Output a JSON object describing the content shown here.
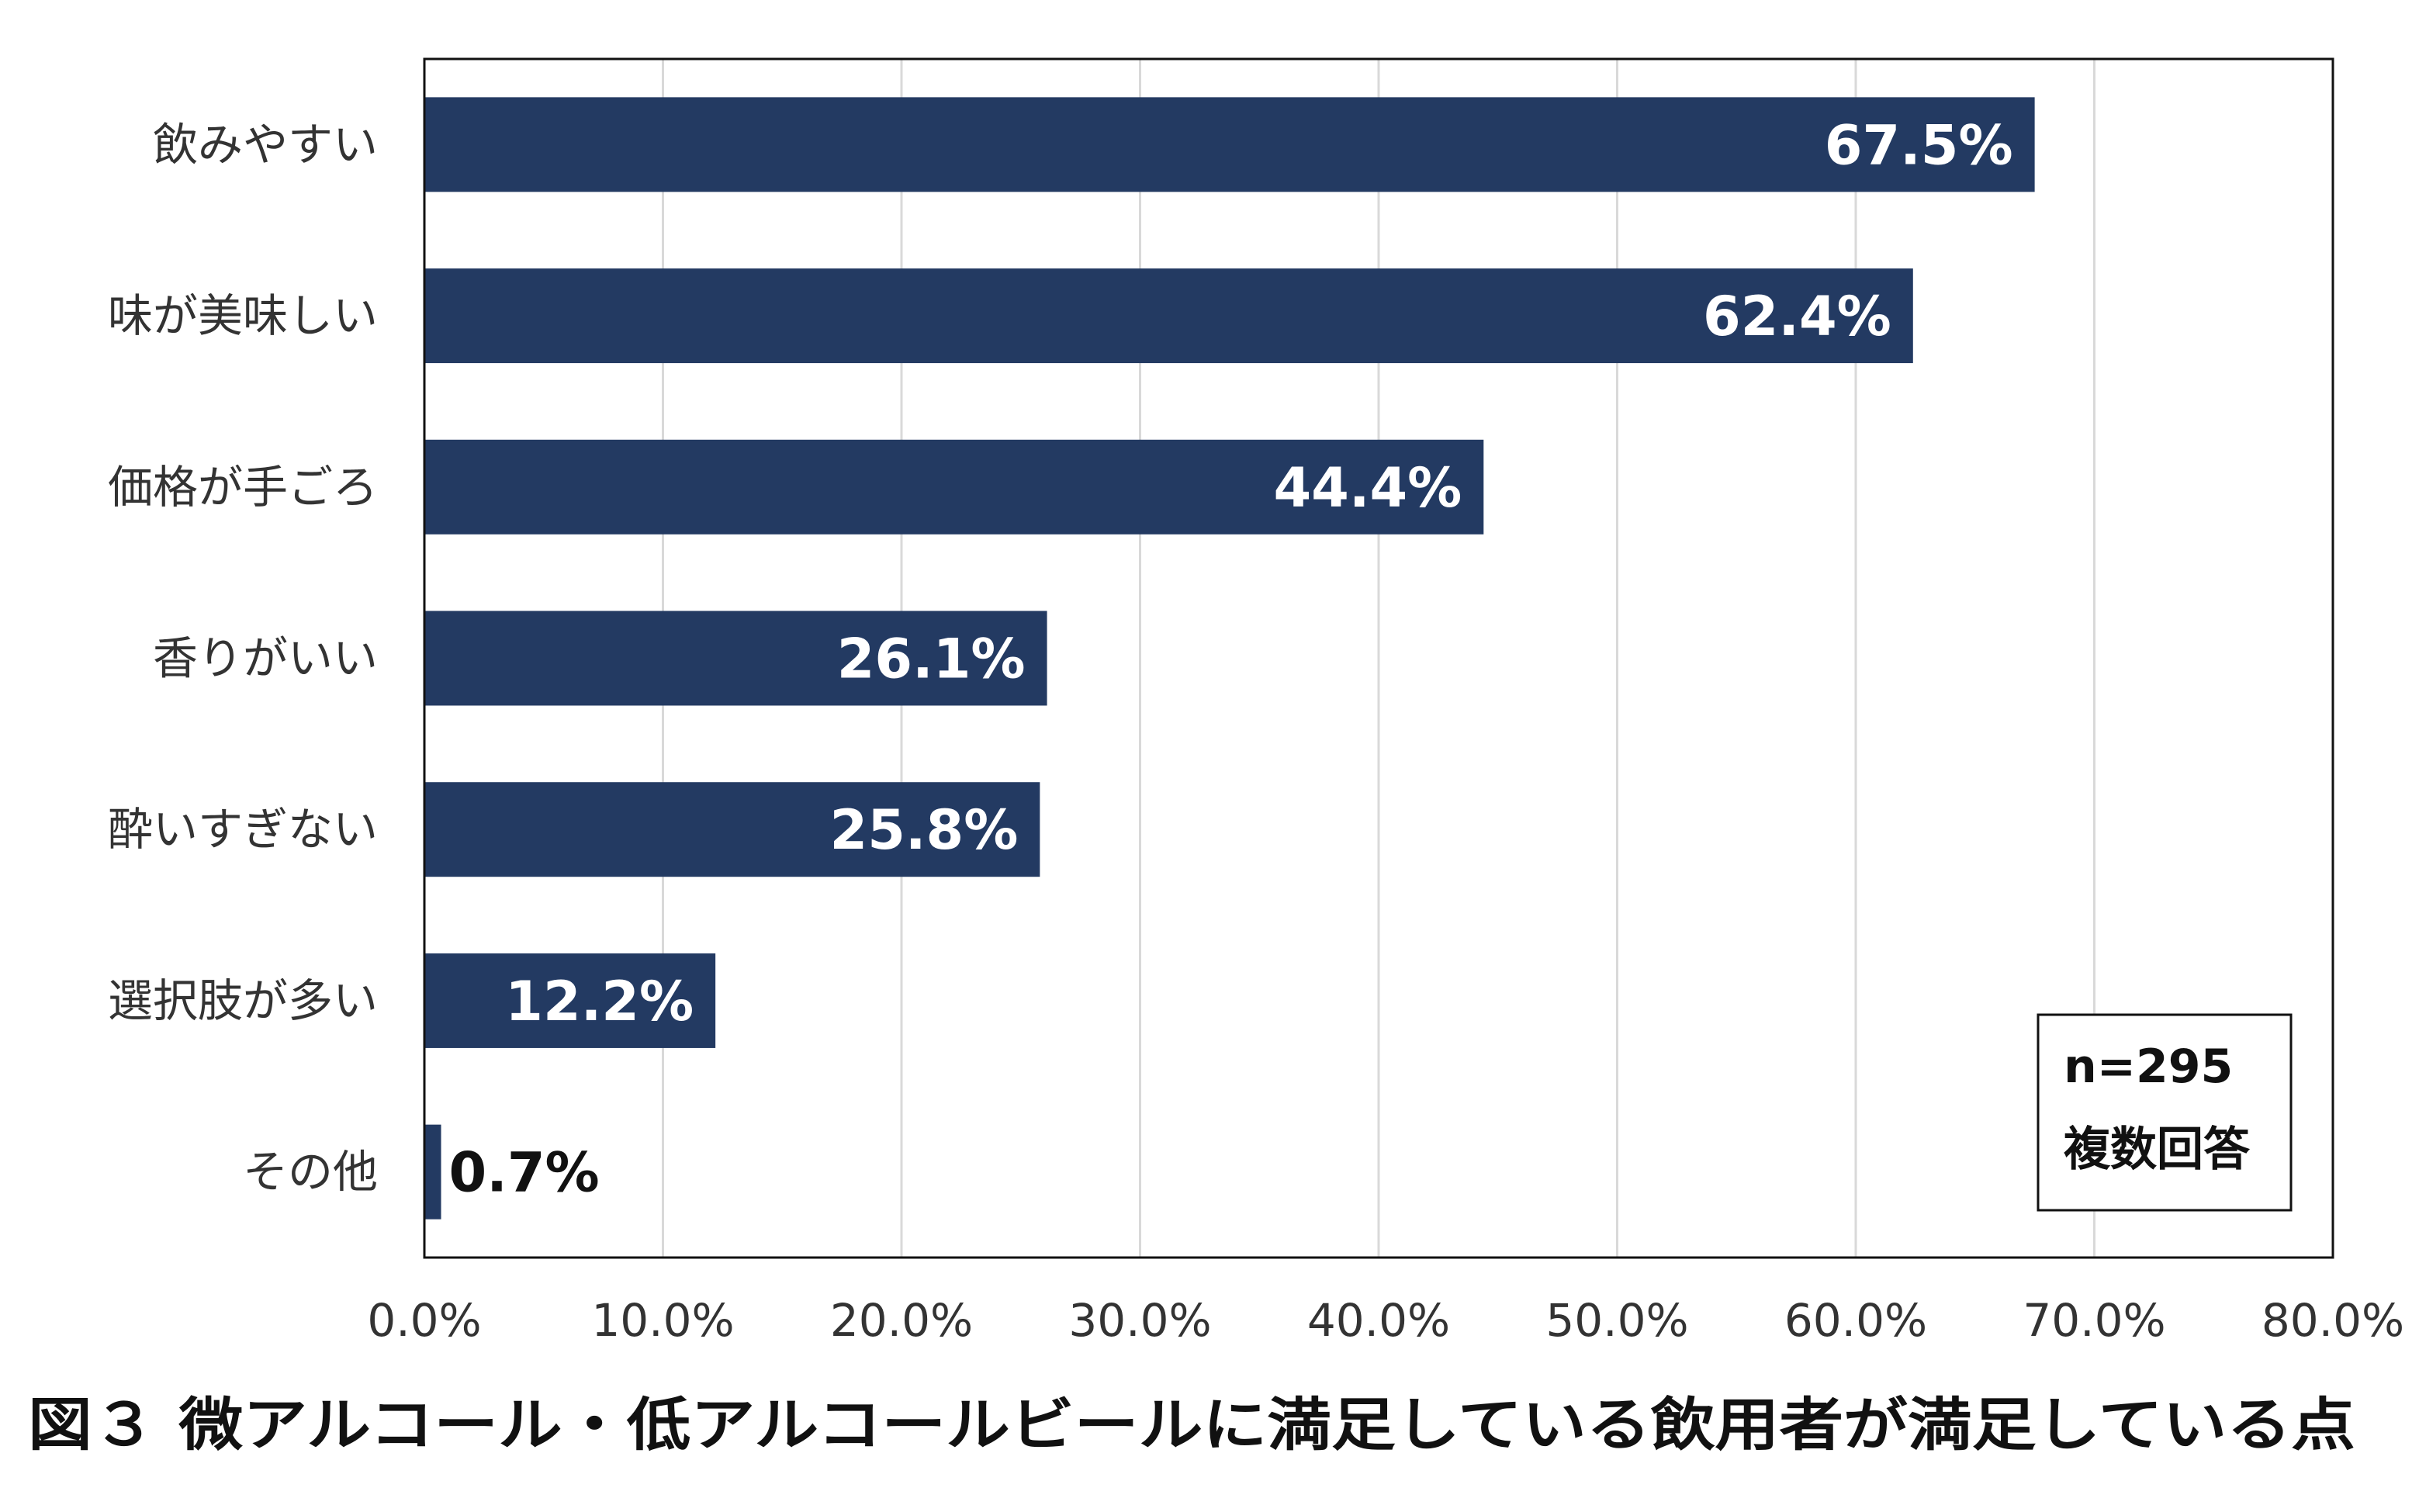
{
  "chart_data": {
    "type": "bar",
    "orientation": "horizontal",
    "categories": [
      "飲みやすい",
      "味が美味しい",
      "価格が手ごろ",
      "香りがいい",
      "酔いすぎない",
      "選択肢が多い",
      "その他"
    ],
    "values": [
      67.5,
      62.4,
      44.4,
      26.1,
      25.8,
      12.2,
      0.7
    ],
    "value_labels": [
      "67.5%",
      "62.4%",
      "44.4%",
      "26.1%",
      "25.8%",
      "12.2%",
      "0.7%"
    ],
    "xlim": [
      0,
      80
    ],
    "x_ticks": [
      0,
      10,
      20,
      30,
      40,
      50,
      60,
      70,
      80
    ],
    "x_tick_labels": [
      "0.0%",
      "10.0%",
      "20.0%",
      "30.0%",
      "40.0%",
      "50.0%",
      "60.0%",
      "70.0%",
      "80.0%"
    ],
    "grid": "vertical",
    "bar_color": "#233a62",
    "note": {
      "n": "n=295",
      "type": "複数回答",
      "placement": "bottom-right"
    },
    "caption": "図３ 微アルコール・低アルコールビールに満足している飲用者が満足している点"
  }
}
